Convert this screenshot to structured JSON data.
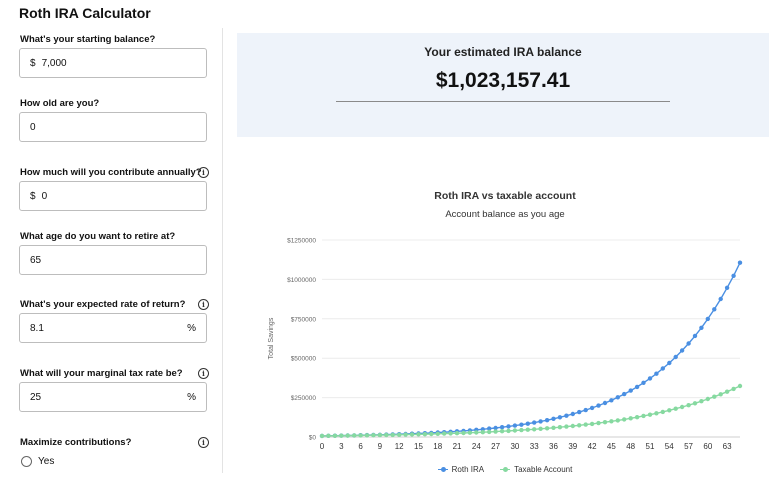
{
  "app": {
    "title": "Roth IRA Calculator"
  },
  "form": {
    "starting_balance": {
      "label": "What's your starting balance?",
      "prefix": "$",
      "value": "7,000"
    },
    "age": {
      "label": "How old are you?",
      "value": "0"
    },
    "annual_contribution": {
      "label": "How much will you contribute annually?",
      "prefix": "$",
      "value": "0"
    },
    "retire_age": {
      "label": "What age do you want to retire at?",
      "value": "65"
    },
    "rate_of_return": {
      "label": "What's your expected rate of return?",
      "value": "8.1",
      "suffix": "%"
    },
    "tax_rate": {
      "label": "What will your marginal tax rate be?",
      "value": "25",
      "suffix": "%"
    },
    "maximize": {
      "label": "Maximize contributions?",
      "option_yes": "Yes",
      "selected": false
    },
    "info_glyph": "i"
  },
  "result": {
    "label": "Your estimated IRA balance",
    "value": "$1,023,157.41"
  },
  "chart_data": {
    "type": "line",
    "title": "Roth IRA vs taxable account",
    "subtitle": "Account balance as you age",
    "ylabel": "Total Savings",
    "xlabel": "",
    "x_ticks": [
      "0",
      "3",
      "6",
      "9",
      "12",
      "15",
      "18",
      "21",
      "24",
      "27",
      "30",
      "33",
      "36",
      "39",
      "42",
      "45",
      "48",
      "51",
      "54",
      "57",
      "60",
      "63"
    ],
    "y_ticks": [
      "$0",
      "$250000",
      "$500000",
      "$750000",
      "$1000000",
      "$1250000"
    ],
    "xlim": [
      0,
      65
    ],
    "ylim": [
      0,
      1250000
    ],
    "grid": "horizontal",
    "legend_position": "bottom",
    "series": [
      {
        "name": "Roth IRA",
        "color": "#4a8fe2",
        "start": 7000,
        "growth": 0.081
      },
      {
        "name": "Taxable Account",
        "color": "#86d9a0",
        "start": 7000,
        "growth": 0.06075
      }
    ]
  }
}
